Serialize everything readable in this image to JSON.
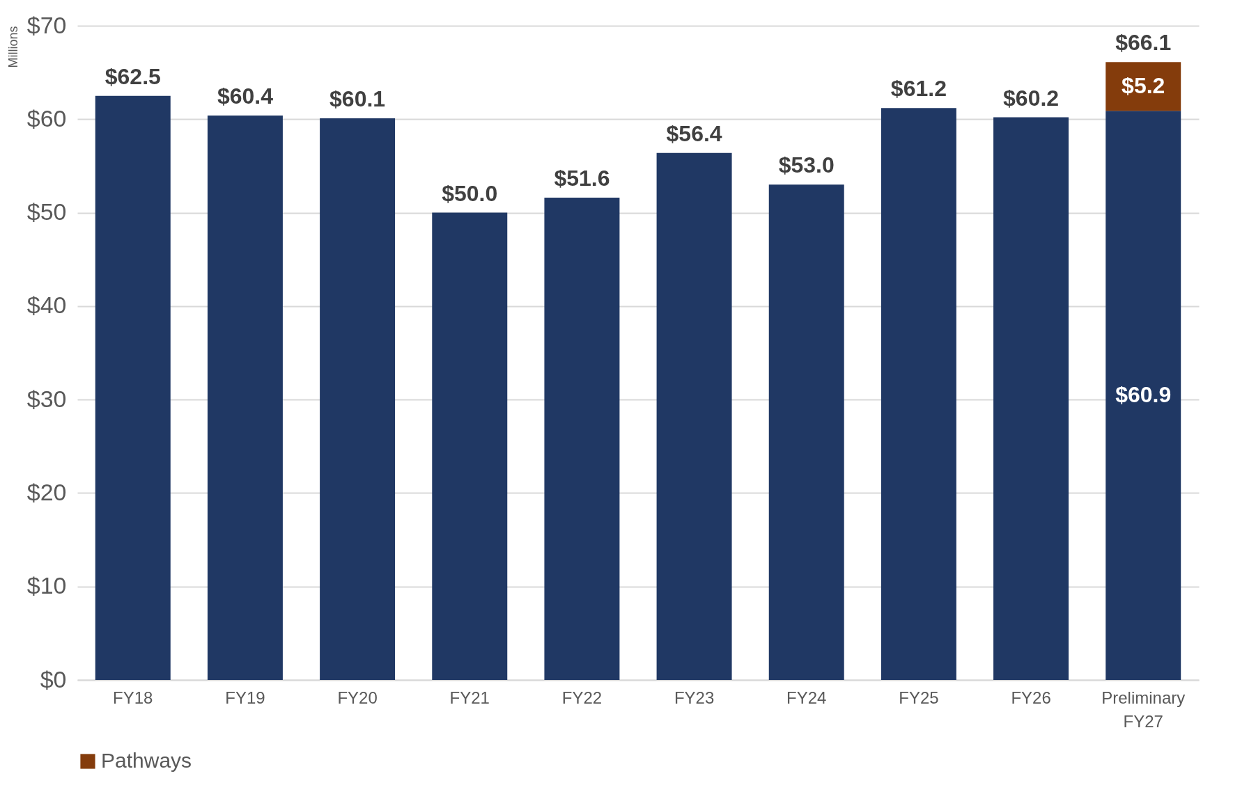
{
  "chart_data": {
    "type": "bar",
    "stacked": true,
    "ylabel": "Millions",
    "categories": [
      "FY18",
      "FY19",
      "FY20",
      "FY21",
      "FY22",
      "FY23",
      "FY24",
      "FY25",
      "FY26",
      "Preliminary FY27"
    ],
    "series": [
      {
        "color": "#203864",
        "values": [
          62.5,
          60.4,
          60.1,
          50.0,
          51.6,
          56.4,
          53.0,
          61.2,
          60.2,
          60.9
        ],
        "value_labels": [
          "$62.5",
          "$60.4",
          "$60.1",
          "$50.0",
          "$51.6",
          "$56.4",
          "$53.0",
          "$61.2",
          "$60.2",
          "$60.9"
        ]
      },
      {
        "name": "Pathways",
        "color": "#843c0c",
        "values": [
          null,
          null,
          null,
          null,
          null,
          null,
          null,
          null,
          null,
          5.2
        ],
        "value_labels": [
          null,
          null,
          null,
          null,
          null,
          null,
          null,
          null,
          null,
          "$5.2"
        ]
      }
    ],
    "totals": [
      null,
      null,
      null,
      null,
      null,
      null,
      null,
      null,
      null,
      "$66.1"
    ],
    "ylim": [
      0,
      70
    ],
    "yticks": [
      {
        "value": 0,
        "label": "$0"
      },
      {
        "value": 10,
        "label": "$10"
      },
      {
        "value": 20,
        "label": "$20"
      },
      {
        "value": 30,
        "label": "$30"
      },
      {
        "value": 40,
        "label": "$40"
      },
      {
        "value": 50,
        "label": "$50"
      },
      {
        "value": 60,
        "label": "$60"
      },
      {
        "value": 70,
        "label": "$70"
      }
    ],
    "grid": "y",
    "legend": "bottom"
  }
}
